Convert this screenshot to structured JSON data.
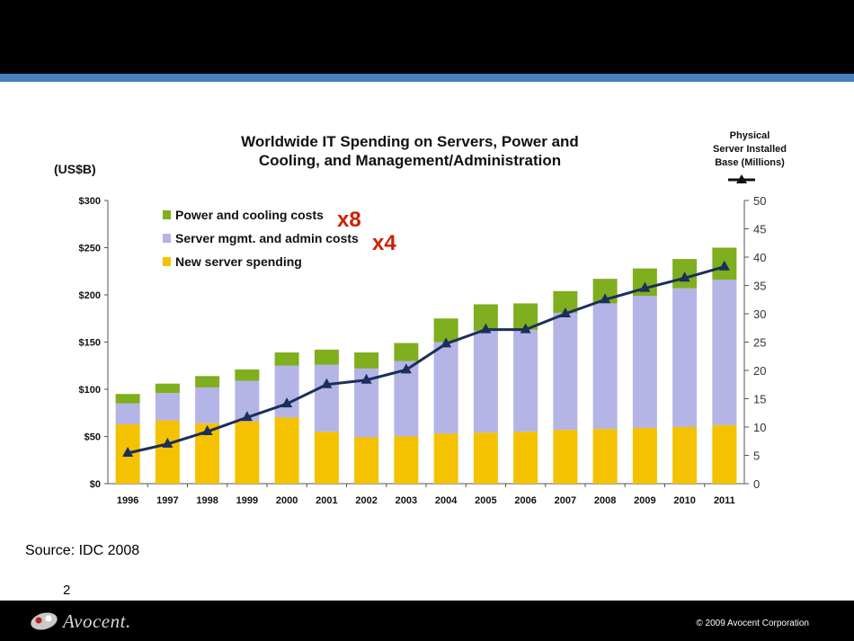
{
  "slide": {
    "source": "Source: IDC 2008",
    "page_number": "2",
    "logo_text": "Avocent.",
    "copyright": "© 2009 Avocent Corporation"
  },
  "colors": {
    "power": "#7fae1e",
    "mgmt": "#b4b4e6",
    "new_server": "#f4c200",
    "line": "#1a2f5a",
    "blue_band": "#4a7fc0"
  },
  "chart_data": {
    "type": "bar",
    "stacked": true,
    "title_line1": "Worldwide IT Spending on Servers, Power and",
    "title_line2": "Cooling, and Management/Administration",
    "ylabel": "(US$B)",
    "y2label_line1": "Physical",
    "y2label_line2": "Server Installed",
    "y2label_line3": "Base (Millions)",
    "ylim": [
      0,
      300
    ],
    "y2lim": [
      0,
      50
    ],
    "y_ticks": [
      "$0",
      "$50",
      "$100",
      "$150",
      "$200",
      "$250",
      "$300"
    ],
    "y2_ticks": [
      "0",
      "5",
      "10",
      "15",
      "20",
      "25",
      "30",
      "35",
      "40",
      "45",
      "50"
    ],
    "legend_position": "top-left",
    "categories": [
      "1996",
      "1997",
      "1998",
      "1999",
      "2000",
      "2001",
      "2002",
      "2003",
      "2004",
      "2005",
      "2006",
      "2007",
      "2008",
      "2009",
      "2010",
      "2011"
    ],
    "series": [
      {
        "name": "New server spending",
        "color": "#f4c200",
        "values": [
          63,
          67,
          64,
          66,
          70,
          55,
          49,
          50,
          53,
          54,
          55,
          57,
          58,
          59,
          60,
          62
        ]
      },
      {
        "name": "Server mgmt. and admin costs",
        "color": "#b4b4e6",
        "values": [
          22,
          29,
          38,
          43,
          55,
          71,
          73,
          80,
          97,
          108,
          108,
          124,
          133,
          140,
          147,
          154
        ]
      },
      {
        "name": "Power and cooling costs",
        "color": "#7fae1e",
        "values": [
          10,
          10,
          12,
          12,
          14,
          16,
          17,
          19,
          25,
          28,
          28,
          23,
          26,
          29,
          31,
          34
        ]
      }
    ],
    "line_series": {
      "name": "Physical Server Installed Base (Millions)",
      "axis": "right",
      "values": [
        5.4,
        7.0,
        9.2,
        11.7,
        14.1,
        17.5,
        18.3,
        20.1,
        24.7,
        27.2,
        27.2,
        30.0,
        32.5,
        34.5,
        36.3,
        38.3
      ]
    },
    "annotations": [
      {
        "text": "x8",
        "color": "#cc2200"
      },
      {
        "text": "x4",
        "color": "#cc2200"
      }
    ]
  }
}
